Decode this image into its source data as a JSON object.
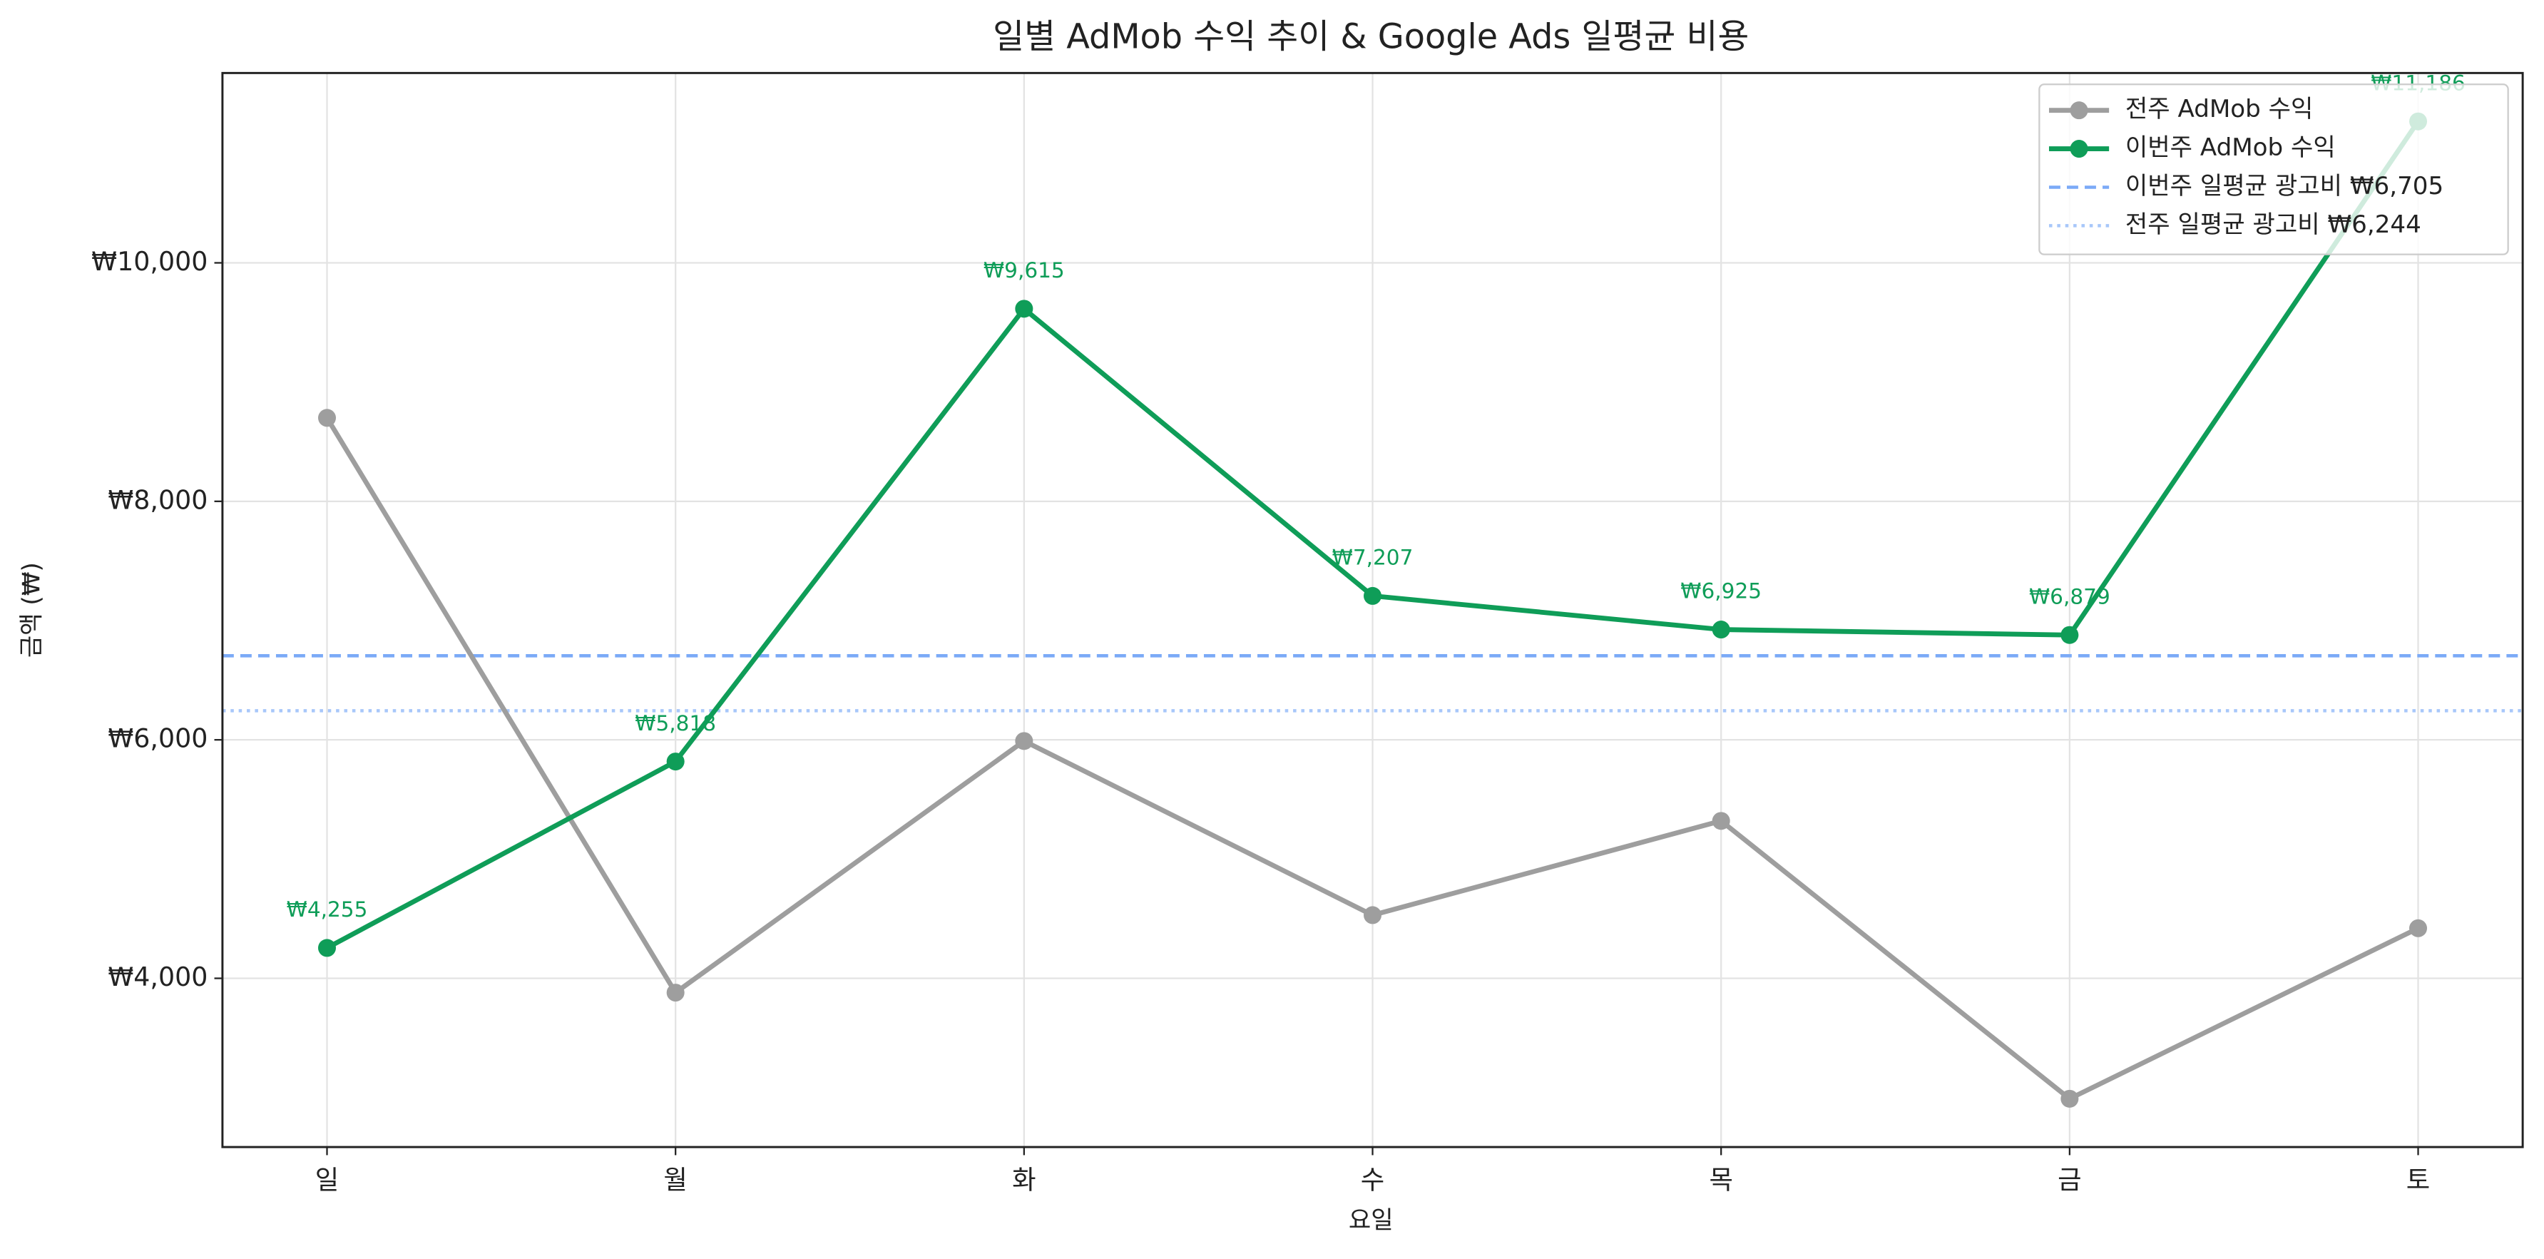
{
  "chart_data": {
    "type": "line",
    "title": "일별 AdMob 수익 추이 & Google Ads 일평균 비용",
    "x_label": "요일",
    "y_label": "금액 (₩)",
    "categories": [
      "일",
      "월",
      "화",
      "수",
      "목",
      "금",
      "토"
    ],
    "series": [
      {
        "name": "전주 AdMob 수익",
        "color": "#9e9e9e",
        "values": [
          8700,
          3880,
          5990,
          4530,
          5320,
          2990,
          4420
        ]
      },
      {
        "name": "이번주 AdMob 수익",
        "color": "#0f9d58",
        "values": [
          4255,
          5818,
          9615,
          7207,
          6925,
          6879,
          11186
        ],
        "value_labels": [
          "₩4,255",
          "₩5,818",
          "₩9,615",
          "₩7,207",
          "₩6,925",
          "₩6,879",
          "₩11,186"
        ]
      }
    ],
    "hlines": [
      {
        "name": "이번주 일평균 광고비 ₩6,705",
        "value": 6705,
        "color": "#7baaf7",
        "style": "dashed"
      },
      {
        "name": "전주 일평균 광고비 ₩6,244",
        "value": 6244,
        "color": "#a8c7fa",
        "style": "dotted"
      }
    ],
    "ylim": [
      2585,
      11592
    ],
    "yticks": [
      {
        "value": 4000,
        "label": "₩4,000"
      },
      {
        "value": 6000,
        "label": "₩6,000"
      },
      {
        "value": 8000,
        "label": "₩8,000"
      },
      {
        "value": 10000,
        "label": "₩10,000"
      }
    ],
    "grid": true,
    "legend": "upper right"
  }
}
